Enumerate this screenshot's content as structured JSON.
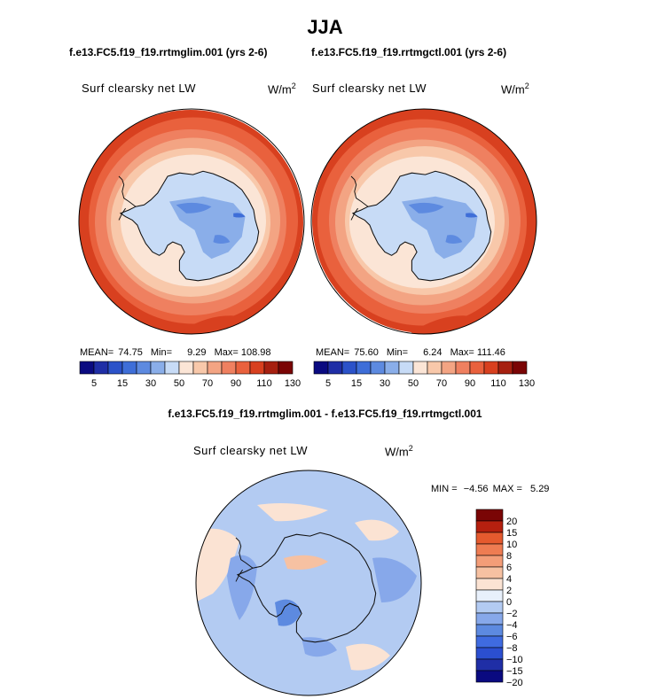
{
  "title": "JJA",
  "colors": {
    "seq_palette": [
      "#0a0a80",
      "#1f2ea6",
      "#2b52c9",
      "#3e6ed8",
      "#5d8ae0",
      "#8aaee9",
      "#c7dbf6",
      "#fbe5d6",
      "#f8c8aa",
      "#f3a483",
      "#ef8060",
      "#e9613d",
      "#d8401f",
      "#a62010",
      "#7a0505"
    ],
    "diff_palette": [
      "#0a0a80",
      "#1f2ea6",
      "#2b4fd0",
      "#3f6be0",
      "#5d8ae0",
      "#87a8ea",
      "#b3cbf2",
      "#e8f0fb",
      "#fbe3d3",
      "#f6c1a2",
      "#f39d78",
      "#ee7c52",
      "#e55a2e",
      "#b5200f",
      "#7a0505"
    ],
    "coast": "#111111"
  },
  "panels": [
    {
      "case": "f.e13.FC5.f19_f19.rrtmglim.001 (yrs 2-6)",
      "variable": "Surf clearsky net LW",
      "units": "W/m",
      "units_exp": "2",
      "mean_label": "MEAN=",
      "mean": "74.75",
      "min_label": "Min=",
      "min": "9.29",
      "max_label": "Max=",
      "max": "108.98"
    },
    {
      "case": "f.e13.FC5.f19_f19.rrtmgctl.001 (yrs 2-6)",
      "variable": "Surf clearsky net LW",
      "units": "W/m",
      "units_exp": "2",
      "mean_label": "MEAN=",
      "mean": "75.60",
      "min_label": "Min=",
      "min": "6.24",
      "max_label": "Max=",
      "max": "111.46"
    }
  ],
  "seq_colorbar_labels": [
    "5",
    "15",
    "30",
    "50",
    "70",
    "90",
    "110",
    "130"
  ],
  "diff": {
    "case": "f.e13.FC5.f19_f19.rrtmglim.001 - f.e13.FC5.f19_f19.rrtmgctl.001",
    "variable": "Surf clearsky net LW",
    "units": "W/m",
    "units_exp": "2",
    "min_label": "MIN =",
    "min": "−4.56",
    "max_label": "MAX =",
    "max": "5.29",
    "colorbar_labels": [
      "20",
      "15",
      "10",
      "8",
      "6",
      "4",
      "2",
      "0",
      "−2",
      "−4",
      "−6",
      "−8",
      "−10",
      "−15",
      "−20"
    ]
  }
}
